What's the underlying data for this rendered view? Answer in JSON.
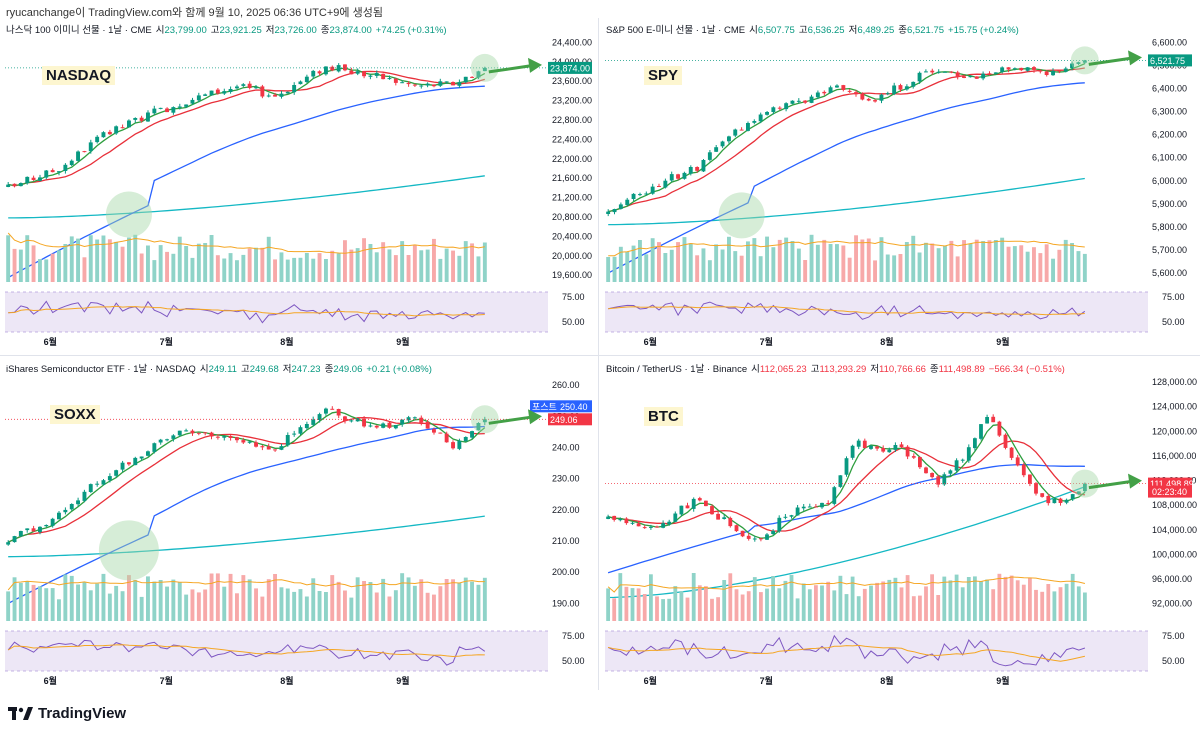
{
  "page_title": "ryucanchange이 TradingView.com와 함께 9월 10, 2025 06:36 UTC+9에 생성됨",
  "footer": {
    "brand": "TradingView"
  },
  "colors": {
    "up": "#089981",
    "down": "#f23645",
    "ma_fast": "#2e9e3e",
    "ma_mid": "#e8303a",
    "ma_slow": "#2962ff",
    "ma_long": "#14b8c4",
    "vol_ma": "#f5a623",
    "rsi": "#7e57c2",
    "rsi_ma": "#f5a623",
    "rsi_band": "#ede7f6",
    "arrow": "#43a047"
  },
  "chart_data": [
    {
      "id": "nasdaq",
      "type": "candlestick",
      "label": "NASDAQ",
      "header": {
        "name": "나스닥 100 이미니 선물 · 1날 · CME",
        "o_label": "시",
        "o": "23,799.00",
        "h_label": "고",
        "h": "23,921.25",
        "l_label": "저",
        "l": "23,726.00",
        "c_label": "종",
        "c": "23,874.00",
        "change": "+74.25 (+0.31%)",
        "change_dir": "up"
      },
      "price_ticks": [
        "24,400.00",
        "24,000.00",
        "23,600.00",
        "23,200.00",
        "22,800.00",
        "22,400.00",
        "22,000.00",
        "21,600.00",
        "21,200.00",
        "20,800.00",
        "20,400.00",
        "20,000.00",
        "19,600.00"
      ],
      "price_range": [
        19500,
        24450
      ],
      "start": 21400,
      "end": 23874,
      "kinks": [
        [
          0,
          21400
        ],
        [
          8,
          21800
        ],
        [
          14,
          22400
        ],
        [
          20,
          22800
        ],
        [
          28,
          23200
        ],
        [
          36,
          23500
        ],
        [
          42,
          23300
        ],
        [
          50,
          23900
        ],
        [
          58,
          23700
        ],
        [
          64,
          23500
        ],
        [
          70,
          23550
        ],
        [
          75,
          23874
        ]
      ],
      "ma_long": [
        20780,
        21650
      ],
      "ma_slow_start": 19550,
      "ma_slow_end": 23400,
      "last_label": "23,874.00",
      "last_bg": "#089981",
      "last_value": 23874,
      "rsi_ticks": [
        "75.00",
        "50.00"
      ],
      "months": [
        "6월",
        "7월",
        "8월",
        "9월"
      ],
      "highlight_early": {
        "i": 19,
        "v": 20850
      }
    },
    {
      "id": "spy",
      "type": "candlestick",
      "label": "SPY",
      "header": {
        "name": "S&P 500 E-미니 선물 · 1날 · CME",
        "o_label": "시",
        "o": "6,507.75",
        "h_label": "고",
        "h": "6,536.25",
        "l_label": "저",
        "l": "6,489.25",
        "c_label": "종",
        "c": "6,521.75",
        "change": "+15.75 (+0.24%)",
        "change_dir": "up"
      },
      "price_ticks": [
        "6,600.00",
        "6,500.00",
        "6,400.00",
        "6,300.00",
        "6,200.00",
        "6,100.00",
        "6,000.00",
        "5,900.00",
        "5,800.00",
        "5,700.00",
        "5,600.00"
      ],
      "price_range": [
        5570,
        6610
      ],
      "start": 5880,
      "end": 6521.75,
      "kinks": [
        [
          0,
          5880
        ],
        [
          8,
          5990
        ],
        [
          14,
          6060
        ],
        [
          20,
          6220
        ],
        [
          28,
          6330
        ],
        [
          36,
          6400
        ],
        [
          42,
          6350
        ],
        [
          50,
          6470
        ],
        [
          58,
          6450
        ],
        [
          64,
          6500
        ],
        [
          70,
          6470
        ],
        [
          75,
          6521.75
        ]
      ],
      "ma_long": [
        5810,
        6010
      ],
      "ma_slow_start": 5600,
      "ma_slow_end": 6390,
      "last_label": "6,521.75",
      "last_bg": "#089981",
      "last_value": 6521.75,
      "rsi_ticks": [
        "75.00",
        "50.00"
      ],
      "months": [
        "6월",
        "7월",
        "8월",
        "9월"
      ],
      "highlight_early": {
        "i": 21,
        "v": 5850
      }
    },
    {
      "id": "soxx",
      "type": "candlestick",
      "label": "SOXX",
      "header": {
        "name": "iShares Semiconductor ETF · 1날 · NASDAQ",
        "o_label": "시",
        "o": "249.11",
        "h_label": "고",
        "h": "249.68",
        "l_label": "저",
        "l": "247.23",
        "c_label": "종",
        "c": "249.06",
        "change": "+0.21 (+0.08%)",
        "change_dir": "up"
      },
      "price_ticks": [
        "260.00",
        "250.00",
        "240.00",
        "230.00",
        "220.00",
        "210.00",
        "200.00",
        "190.00"
      ],
      "price_range": [
        185,
        262
      ],
      "start": 210,
      "end": 249.06,
      "kinks": [
        [
          0,
          210
        ],
        [
          8,
          218
        ],
        [
          14,
          229
        ],
        [
          20,
          237
        ],
        [
          28,
          246
        ],
        [
          36,
          243
        ],
        [
          42,
          240
        ],
        [
          50,
          252
        ],
        [
          58,
          246
        ],
        [
          64,
          249
        ],
        [
          70,
          241
        ],
        [
          75,
          249.06
        ]
      ],
      "ma_long": [
        205,
        218
      ],
      "ma_slow_start": 190,
      "ma_slow_end": 247,
      "last_label": "249.06",
      "last_bg": "#f23645",
      "last_value": 249.06,
      "extra_label": {
        "text": "포스트",
        "value": "250.40",
        "bg": "#2962ff"
      },
      "rsi_ticks": [
        "75.00",
        "50.00"
      ],
      "months": [
        "6월",
        "7월",
        "8월",
        "9월"
      ],
      "highlight_early": {
        "i": 19,
        "v": 207
      }
    },
    {
      "id": "btc",
      "type": "candlestick",
      "label": "BTC",
      "header": {
        "name": "Bitcoin / TetherUS · 1날 · Binance",
        "o_label": "시",
        "o": "112,065.23",
        "h_label": "고",
        "h": "113,293.29",
        "l_label": "저",
        "l": "110,766.66",
        "c_label": "종",
        "c": "111,498.89",
        "change": "−566.34 (−0.51%)",
        "change_dir": "down"
      },
      "price_ticks": [
        "128,000.00",
        "124,000.00",
        "120,000.00",
        "116,000.00",
        "112,000.00",
        "108,000.00",
        "104,000.00",
        "100,000.00",
        "96,000.00",
        "92,000.00"
      ],
      "price_range": [
        89500,
        128500
      ],
      "start": 106000,
      "end": 111498.89,
      "kinks": [
        [
          0,
          106000
        ],
        [
          8,
          104000
        ],
        [
          14,
          109000
        ],
        [
          20,
          105000
        ],
        [
          24,
          102000
        ],
        [
          30,
          107000
        ],
        [
          36,
          108000
        ],
        [
          40,
          118000
        ],
        [
          48,
          117000
        ],
        [
          54,
          112000
        ],
        [
          58,
          116000
        ],
        [
          62,
          123000
        ],
        [
          66,
          116000
        ],
        [
          70,
          110000
        ],
        [
          74,
          108000
        ],
        [
          78,
          111498.89
        ]
      ],
      "ma_long": [
        93000,
        111000
      ],
      "ma_slow_start": 97000,
      "ma_slow_end": 114500,
      "last_label": "111,498.89",
      "last_bg": "#f23645",
      "last_value": 111498.89,
      "extra_label": {
        "text": "02:23:40",
        "value": "",
        "bg": "#f23645"
      },
      "rsi_ticks": [
        "75.00",
        "50.00"
      ],
      "months": [
        "6월",
        "7월",
        "8월",
        "9월"
      ],
      "highlight_early": null
    }
  ]
}
